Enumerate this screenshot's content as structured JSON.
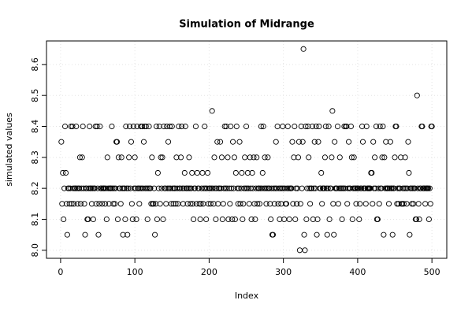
{
  "chart_data": {
    "type": "scatter",
    "title": "Simulation of Midrange",
    "xlabel": "Index",
    "ylabel": "simulated values",
    "values": [
      8.35,
      8.15,
      8.25,
      8.1,
      8.2,
      8.4,
      8.25,
      8.15,
      8.05,
      8.2,
      8.2,
      8.15,
      8.2,
      8.4,
      8.15,
      8.4,
      8.2,
      8.15,
      8.2,
      8.2,
      8.4,
      8.2,
      8.15,
      8.2,
      8.2,
      8.3,
      8.15,
      8.2,
      8.3,
      8.4,
      8.2,
      8.15,
      8.05,
      8.2,
      8.2,
      8.1,
      8.1,
      8.2,
      8.4,
      8.2,
      8.2,
      8.15,
      8.2,
      8.1,
      8.2,
      8.2,
      8.4,
      8.15,
      8.4,
      8.2,
      8.05,
      8.15,
      8.4,
      8.2,
      8.2,
      8.15,
      8.2,
      8.2,
      8.2,
      8.15,
      8.2,
      8.1,
      8.3,
      8.2,
      8.15,
      8.2,
      8.2,
      8.2,
      8.4,
      8.2,
      8.15,
      8.2,
      8.15,
      8.2,
      8.35,
      8.35,
      8.1,
      8.3,
      8.2,
      8.2,
      8.15,
      8.3,
      8.2,
      8.05,
      8.2,
      8.2,
      8.1,
      8.4,
      8.2,
      8.05,
      8.2,
      8.3,
      8.4,
      8.2,
      8.35,
      8.15,
      8.1,
      8.4,
      8.2,
      8.3,
      8.2,
      8.1,
      8.4,
      8.2,
      8.2,
      8.15,
      8.2,
      8.4,
      8.2,
      8.4,
      8.2,
      8.35,
      8.4,
      8.2,
      8.4,
      8.2,
      8.1,
      8.2,
      8.4,
      8.2,
      8.2,
      8.15,
      8.3,
      8.15,
      8.15,
      8.2,
      8.05,
      8.15,
      8.4,
      8.1,
      8.25,
      8.2,
      8.4,
      8.15,
      8.3,
      8.2,
      8.3,
      8.1,
      8.4,
      8.2,
      8.2,
      8.15,
      8.4,
      8.2,
      8.35,
      8.2,
      8.4,
      8.2,
      8.15,
      8.4,
      8.2,
      8.15,
      8.2,
      8.2,
      8.15,
      8.3,
      8.2,
      8.15,
      8.4,
      8.2,
      8.2,
      8.3,
      8.4,
      8.2,
      8.15,
      8.2,
      8.25,
      8.4,
      8.2,
      8.2,
      8.15,
      8.2,
      8.3,
      8.2,
      8.15,
      8.2,
      8.25,
      8.15,
      8.1,
      8.2,
      8.2,
      8.4,
      8.15,
      8.25,
      8.2,
      8.2,
      8.15,
      8.1,
      8.15,
      8.2,
      8.25,
      8.15,
      8.2,
      8.4,
      8.2,
      8.1,
      8.2,
      8.25,
      8.15,
      8.2,
      8.2,
      8.15,
      8.2,
      8.45,
      8.2,
      8.15,
      8.3,
      8.2,
      8.1,
      8.2,
      8.35,
      8.15,
      8.2,
      8.2,
      8.35,
      8.2,
      8.3,
      8.1,
      8.15,
      8.2,
      8.4,
      8.2,
      8.4,
      8.2,
      8.3,
      8.1,
      8.2,
      8.15,
      8.4,
      8.2,
      8.1,
      8.35,
      8.2,
      8.3,
      8.1,
      8.25,
      8.4,
      8.2,
      8.15,
      8.2,
      8.35,
      8.15,
      8.2,
      8.25,
      8.1,
      8.15,
      8.2,
      8.3,
      8.2,
      8.4,
      8.2,
      8.25,
      8.2,
      8.15,
      8.3,
      8.2,
      8.1,
      8.25,
      8.2,
      8.3,
      8.15,
      8.1,
      8.2,
      8.3,
      8.15,
      8.2,
      8.2,
      8.15,
      8.2,
      8.4,
      8.2,
      8.25,
      8.4,
      8.2,
      8.3,
      8.2,
      8.15,
      8.2,
      8.3,
      8.2,
      8.2,
      8.15,
      8.1,
      8.2,
      8.05,
      8.05,
      8.2,
      8.15,
      8.2,
      8.35,
      8.2,
      8.4,
      8.15,
      8.2,
      8.1,
      8.2,
      8.15,
      8.2,
      8.4,
      8.2,
      8.1,
      8.2,
      8.15,
      8.15,
      8.2,
      8.4,
      8.2,
      8.1,
      8.2,
      8.2,
      8.2,
      8.35,
      8.15,
      8.3,
      8.4,
      8.1,
      8.2,
      8.15,
      8.2,
      8.3,
      8.35,
      8.0,
      8.15,
      8.4,
      8.2,
      8.35,
      8.65,
      8.05,
      8.0,
      8.4,
      8.1,
      8.2,
      8.4,
      8.3,
      8.2,
      8.15,
      8.2,
      8.2,
      8.4,
      8.1,
      8.2,
      8.35,
      8.2,
      8.4,
      8.05,
      8.1,
      8.35,
      8.4,
      8.2,
      8.2,
      8.25,
      8.15,
      8.2,
      8.2,
      8.2,
      8.3,
      8.4,
      8.2,
      8.05,
      8.2,
      8.4,
      8.1,
      8.2,
      8.2,
      8.3,
      8.45,
      8.15,
      8.05,
      8.35,
      8.2,
      8.2,
      8.2,
      8.4,
      8.15,
      8.2,
      8.3,
      8.2,
      8.2,
      8.1,
      8.2,
      8.2,
      8.4,
      8.2,
      8.4,
      8.4,
      8.15,
      8.2,
      8.35,
      8.2,
      8.2,
      8.4,
      8.3,
      8.1,
      8.2,
      8.3,
      8.2,
      8.2,
      8.15,
      8.2,
      8.2,
      8.2,
      8.1,
      8.15,
      8.2,
      8.2,
      8.4,
      8.35,
      8.2,
      8.2,
      8.2,
      8.15,
      8.4,
      8.2,
      8.2,
      8.2,
      8.2,
      8.2,
      8.25,
      8.25,
      8.15,
      8.35,
      8.2,
      8.3,
      8.2,
      8.4,
      8.1,
      8.1,
      8.2,
      8.15,
      8.4,
      8.2,
      8.2,
      8.3,
      8.4,
      8.05,
      8.3,
      8.2,
      8.35,
      8.2,
      8.2,
      8.2,
      8.15,
      8.2,
      8.35,
      8.2,
      8.2,
      8.05,
      8.2,
      8.2,
      8.3,
      8.4,
      8.4,
      8.15,
      8.2,
      8.15,
      8.2,
      8.2,
      8.3,
      8.15,
      8.15,
      8.2,
      8.15,
      8.2,
      8.3,
      8.2,
      8.15,
      8.2,
      8.35,
      8.25,
      8.05,
      8.2,
      8.2,
      8.15,
      8.2,
      8.15,
      8.2,
      8.2,
      8.1,
      8.1,
      8.5,
      8.2,
      8.15,
      8.1,
      8.2,
      8.2,
      8.4,
      8.4,
      8.2,
      8.2,
      8.2,
      8.15,
      8.2,
      8.2,
      8.2,
      8.2,
      8.1,
      8.2,
      8.15,
      8.4,
      8.4
    ],
    "color": "#000000",
    "xlim": [
      -19,
      520
    ],
    "xticks": [
      0,
      100,
      200,
      300,
      400,
      500
    ],
    "ylim": [
      7.974,
      8.676
    ],
    "yticks": [
      {
        "value": 8,
        "label": "8.0"
      },
      8.1,
      8.2,
      8.3,
      8.4,
      8.5,
      8.6
    ],
    "grid": true
  }
}
